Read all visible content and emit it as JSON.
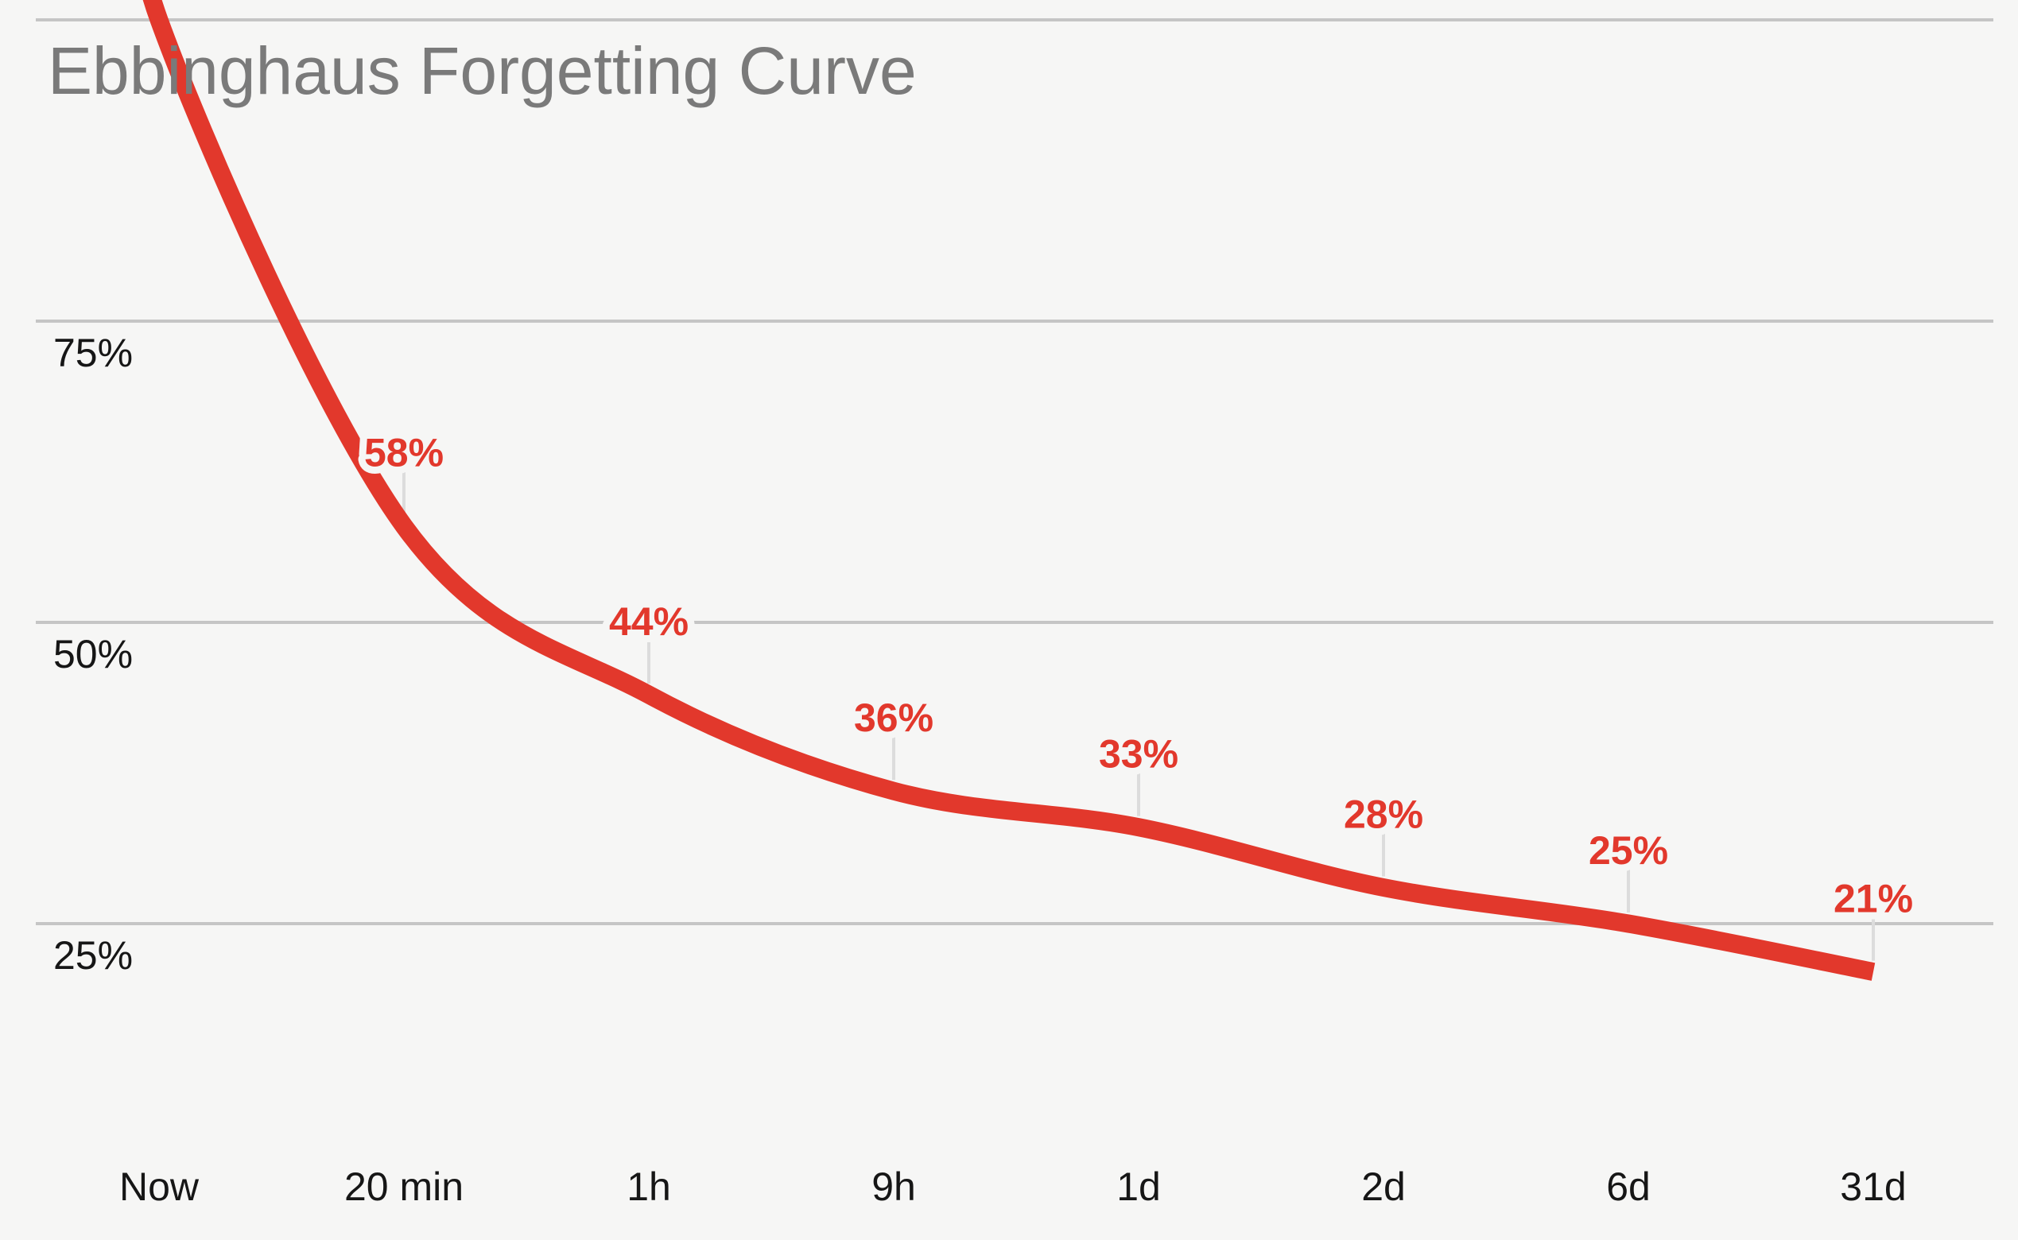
{
  "title": "Ebbinghaus Forgetting Curve",
  "colors": {
    "background": "#f6f6f5",
    "curve": "#e2382c",
    "point_label_text": "#e2382c",
    "gridline": "#c5c5c5",
    "point_tick": "#dcdcdc",
    "title_text": "#7a7a7a",
    "axis_text": "#161616"
  },
  "chart_data": {
    "type": "line",
    "title": "Ebbinghaus Forgetting Curve",
    "xlabel": "",
    "ylabel": "",
    "categories": [
      "Now",
      "20 min",
      "1h",
      "9h",
      "1d",
      "2d",
      "6d",
      "31d"
    ],
    "values": [
      100,
      58,
      44,
      36,
      33,
      28,
      25,
      21
    ],
    "point_labels": [
      "",
      "58%",
      "44%",
      "36%",
      "33%",
      "28%",
      "25%",
      "21%"
    ],
    "y_axis": {
      "ticks": [
        {
          "value": 100,
          "label": ""
        },
        {
          "value": 75,
          "label": "75%"
        },
        {
          "value": 50,
          "label": "50%"
        },
        {
          "value": 25,
          "label": "25%"
        }
      ]
    },
    "ylim": [
      0,
      100
    ],
    "grid": true,
    "legend": "none"
  }
}
